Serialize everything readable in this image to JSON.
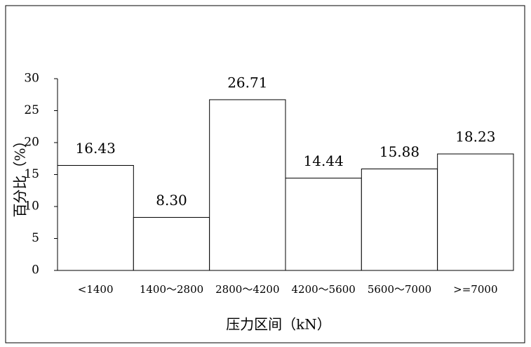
{
  "chart_data": {
    "type": "bar",
    "x_label": "压力区间（kN）",
    "y_label": "百分比（%）",
    "categories": [
      "<1400",
      "1400～2800",
      "2800～4200",
      "4200～5600",
      "5600～7000",
      ">=7000"
    ],
    "values": [
      16.43,
      8.3,
      26.71,
      14.44,
      15.88,
      18.23
    ],
    "value_labels": [
      "16.43",
      "8.30",
      "26.71",
      "14.44",
      "15.88",
      "18.23"
    ],
    "color": "#ffffff",
    "ylim": [
      0,
      30
    ],
    "yticks": [
      0,
      5,
      10,
      15,
      20,
      25,
      30
    ],
    "grid": false
  }
}
